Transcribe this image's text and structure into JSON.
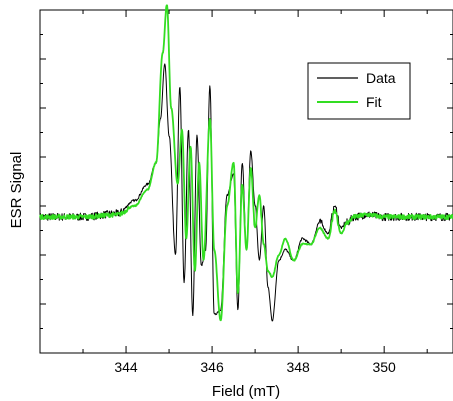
{
  "chart_data": {
    "type": "line",
    "title": "",
    "xlabel": "Field (mT)",
    "ylabel": "ESR Signal",
    "xlim": [
      342.0,
      351.6
    ],
    "ylim": [
      -1.25,
      1.9
    ],
    "x_ticks": [
      344,
      346,
      348,
      350
    ],
    "x_minor_ticks": [
      343,
      345,
      347,
      349,
      351
    ],
    "y_tick_labels": "none",
    "grid": false,
    "legend": {
      "position": "top-right"
    },
    "series": [
      {
        "name": "Data",
        "color": "#000000",
        "x": [
          342.0,
          343.0,
          343.8,
          344.2,
          344.5,
          344.7,
          344.8,
          344.9,
          345.0,
          345.15,
          345.25,
          345.35,
          345.45,
          345.55,
          345.65,
          345.75,
          345.85,
          345.95,
          346.05,
          346.2,
          346.35,
          346.5,
          346.6,
          346.7,
          346.8,
          346.9,
          347.0,
          347.1,
          347.2,
          347.3,
          347.4,
          347.55,
          347.7,
          347.9,
          348.1,
          348.3,
          348.5,
          348.7,
          348.85,
          349.0,
          349.15,
          349.3,
          349.6,
          350.0,
          351.0,
          351.6
        ],
        "y": [
          0.0,
          0.0,
          0.03,
          0.15,
          0.3,
          0.5,
          0.9,
          1.4,
          0.75,
          -0.35,
          1.2,
          -0.6,
          0.8,
          -0.9,
          0.75,
          -0.45,
          -0.3,
          1.2,
          -0.9,
          -0.85,
          0.2,
          0.4,
          -0.85,
          0.5,
          -0.3,
          0.6,
          0.1,
          -0.4,
          0.1,
          -0.65,
          -0.95,
          -0.4,
          -0.3,
          -0.4,
          -0.2,
          -0.25,
          -0.05,
          -0.15,
          0.1,
          -0.1,
          -0.05,
          0.0,
          0.02,
          0.0,
          0.0,
          0.0
        ]
      },
      {
        "name": "Fit",
        "color": "#33dd22",
        "x": [
          342.0,
          343.0,
          343.8,
          344.2,
          344.5,
          344.7,
          344.85,
          344.95,
          345.05,
          345.2,
          345.3,
          345.4,
          345.5,
          345.6,
          345.7,
          345.8,
          345.95,
          346.05,
          346.2,
          346.35,
          346.5,
          346.6,
          346.7,
          346.8,
          346.9,
          347.0,
          347.1,
          347.2,
          347.3,
          347.4,
          347.55,
          347.7,
          347.9,
          348.1,
          348.3,
          348.5,
          348.7,
          348.85,
          349.0,
          349.15,
          349.3,
          349.6,
          350.0,
          351.0,
          351.6
        ],
        "y": [
          0.0,
          0.0,
          0.02,
          0.1,
          0.25,
          0.5,
          1.5,
          1.95,
          1.0,
          0.3,
          0.8,
          -0.2,
          0.65,
          -0.5,
          0.5,
          -0.4,
          0.9,
          -0.3,
          -0.95,
          0.1,
          0.5,
          -0.7,
          0.3,
          -0.3,
          0.45,
          -0.1,
          0.2,
          -0.25,
          -0.5,
          -0.55,
          -0.35,
          -0.2,
          -0.4,
          -0.25,
          -0.25,
          -0.1,
          -0.2,
          0.05,
          -0.15,
          -0.05,
          0.0,
          0.02,
          0.0,
          0.0,
          0.0
        ]
      }
    ]
  }
}
